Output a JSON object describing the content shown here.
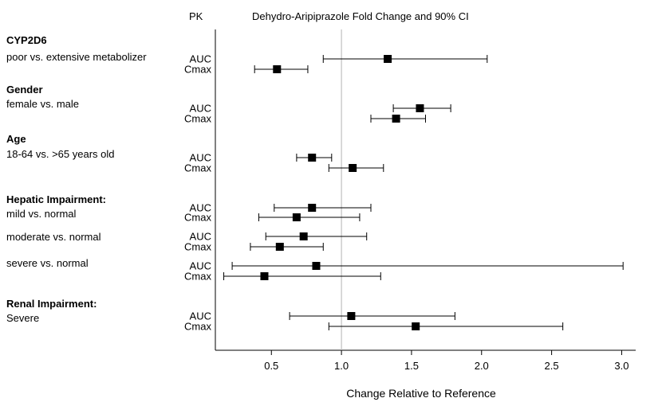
{
  "chart_data": {
    "type": "forest",
    "title": "Dehydro-Aripiprazole Fold Change and 90% CI",
    "pk_header": "PK",
    "xlabel": "Change Relative to Reference",
    "xlim": [
      0.1,
      3.1
    ],
    "xticks": [
      0.5,
      1.0,
      1.5,
      2.0,
      2.5,
      3.0
    ],
    "xtick_labels": [
      "0.5",
      "1.0",
      "1.5",
      "2.0",
      "2.5",
      "3.0"
    ],
    "reference_line": 1.0,
    "grid": false,
    "groups": [
      {
        "header": "CYP2D6",
        "subgroups": [
          {
            "label": "poor vs. extensive metabolizer",
            "rows": [
              {
                "pk": "AUC",
                "estimate": 1.33,
                "lower": 0.87,
                "upper": 2.04
              },
              {
                "pk": "Cmax",
                "estimate": 0.54,
                "lower": 0.38,
                "upper": 0.76
              }
            ]
          }
        ]
      },
      {
        "header": "Gender",
        "subgroups": [
          {
            "label": "female vs. male",
            "rows": [
              {
                "pk": "AUC",
                "estimate": 1.56,
                "lower": 1.37,
                "upper": 1.78
              },
              {
                "pk": "Cmax",
                "estimate": 1.39,
                "lower": 1.21,
                "upper": 1.6
              }
            ]
          }
        ]
      },
      {
        "header": "Age",
        "subgroups": [
          {
            "label": "18-64 vs. >65 years old",
            "rows": [
              {
                "pk": "AUC",
                "estimate": 0.79,
                "lower": 0.68,
                "upper": 0.93
              },
              {
                "pk": "Cmax",
                "estimate": 1.08,
                "lower": 0.91,
                "upper": 1.3
              }
            ]
          }
        ]
      },
      {
        "header": "Hepatic Impairment:",
        "subgroups": [
          {
            "label": "mild vs. normal",
            "rows": [
              {
                "pk": "AUC",
                "estimate": 0.79,
                "lower": 0.52,
                "upper": 1.21
              },
              {
                "pk": "Cmax",
                "estimate": 0.68,
                "lower": 0.41,
                "upper": 1.13
              }
            ]
          },
          {
            "label": "moderate vs. normal",
            "rows": [
              {
                "pk": "AUC",
                "estimate": 0.73,
                "lower": 0.46,
                "upper": 1.18
              },
              {
                "pk": "Cmax",
                "estimate": 0.56,
                "lower": 0.35,
                "upper": 0.87
              }
            ]
          },
          {
            "label": "severe vs. normal",
            "rows": [
              {
                "pk": "AUC",
                "estimate": 0.82,
                "lower": 0.22,
                "upper": 3.01
              },
              {
                "pk": "Cmax",
                "estimate": 0.45,
                "lower": 0.16,
                "upper": 1.28
              }
            ]
          }
        ]
      },
      {
        "header": "Renal Impairment:",
        "subgroups": [
          {
            "label": "Severe",
            "rows": [
              {
                "pk": "AUC",
                "estimate": 1.07,
                "lower": 0.63,
                "upper": 1.81
              },
              {
                "pk": "Cmax",
                "estimate": 1.53,
                "lower": 0.91,
                "upper": 2.58
              }
            ]
          }
        ]
      }
    ]
  }
}
